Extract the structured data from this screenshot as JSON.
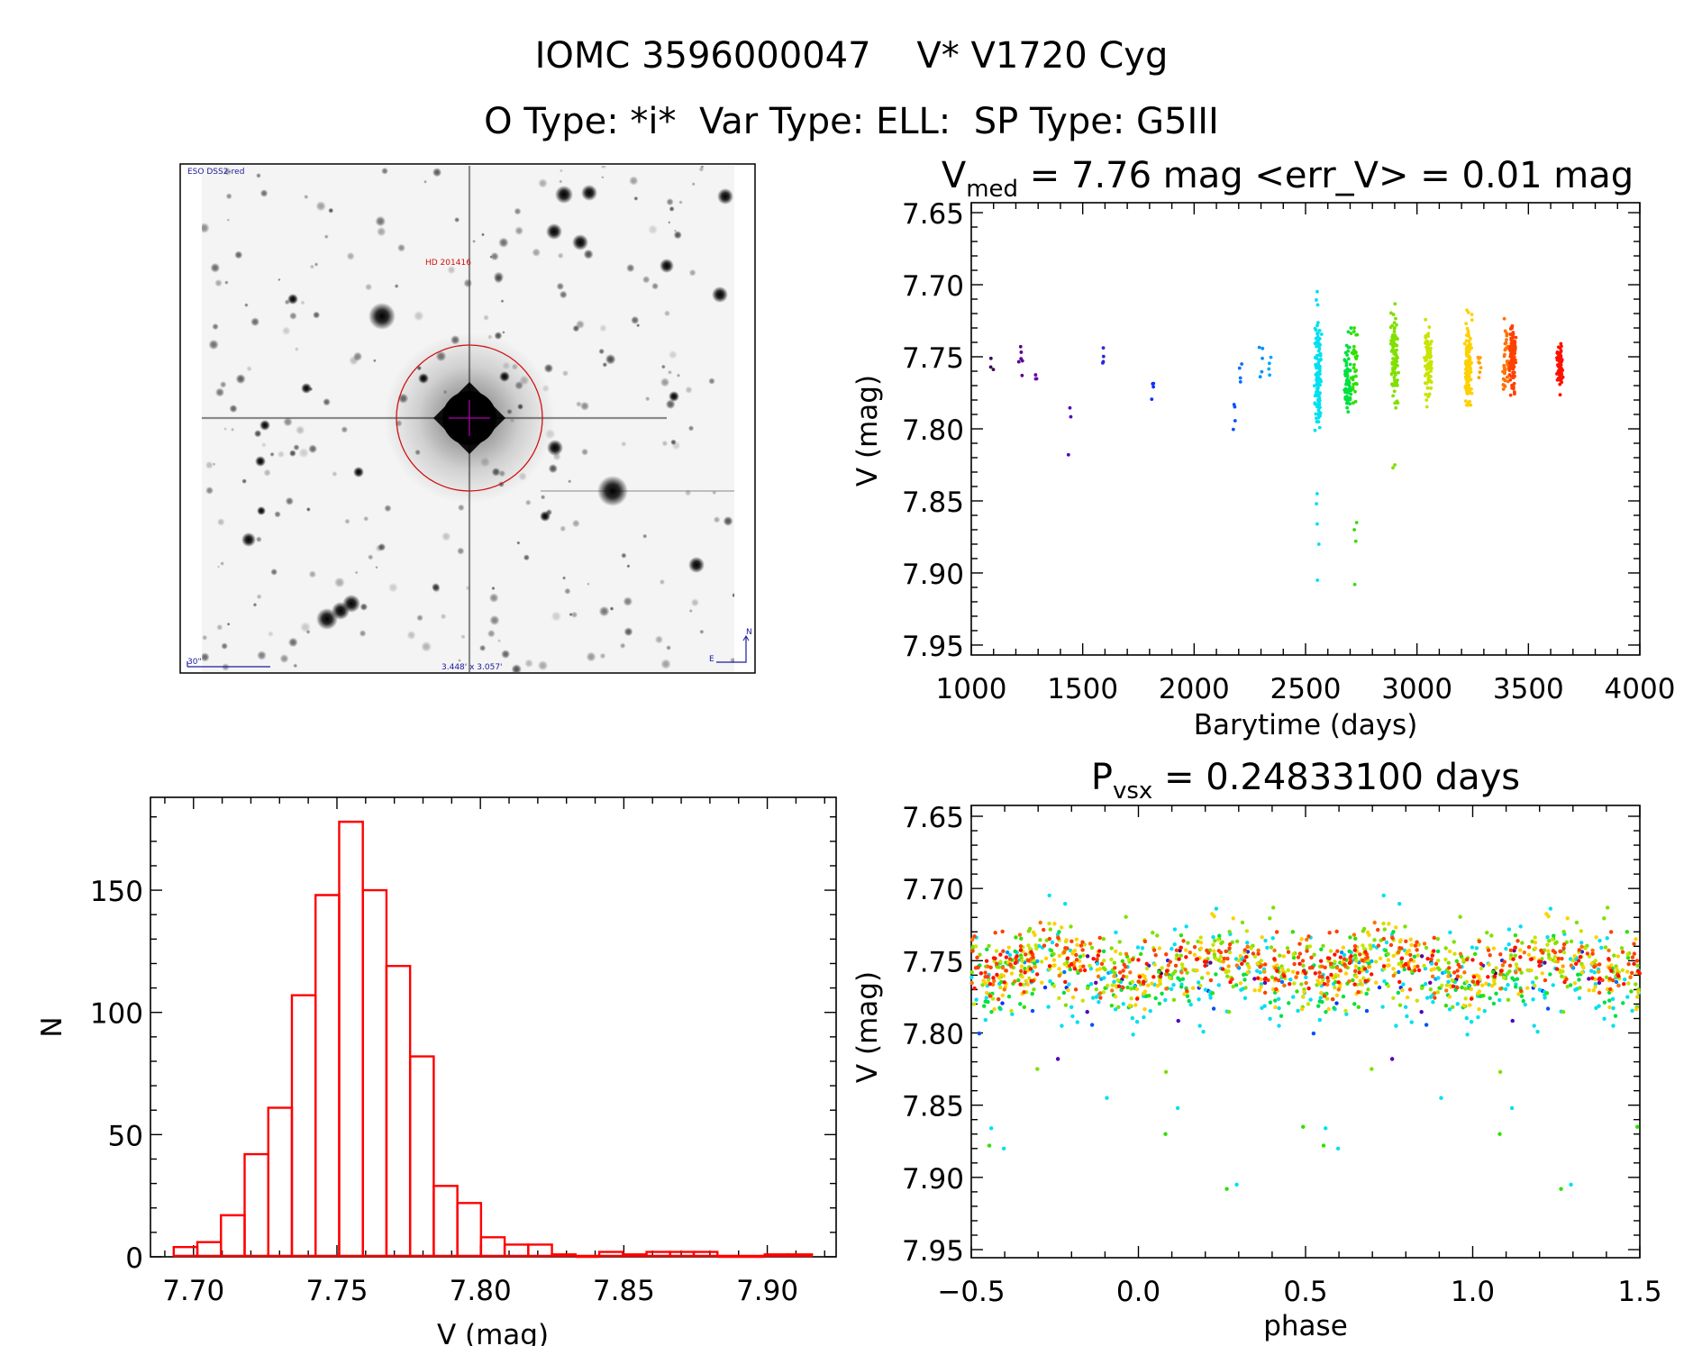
{
  "header": {
    "line1": "IOMC 3596000047    V* V1720 Cyg",
    "line2": "O Type: *i*  Var Type: ELL:  SP Type: G5III"
  },
  "finder_image": {
    "survey_label": "ESO DSS2-red",
    "target_label": "HD 201416",
    "scale_label": "30\"",
    "field_size_label": "3.448' x 3.057'",
    "north_label": "N",
    "east_label": "E",
    "circle_color": "#d01010",
    "overlay_color": "#1a1aa0"
  },
  "chart_data": [
    {
      "id": "lightcurve",
      "type": "scatter",
      "title_main": "V",
      "title_sub": "med",
      "title_rest": " = 7.76 mag <err_V> = 0.01 mag",
      "xlabel": "Barytime (days)",
      "ylabel": "V (mag)",
      "xlim": [
        1000,
        4000
      ],
      "ylim": [
        7.95,
        7.65
      ],
      "y_inverted": true,
      "xticks": [
        "1000",
        "1500",
        "2000",
        "2500",
        "3000",
        "3500",
        "4000"
      ],
      "yticks": [
        "7.65",
        "7.70",
        "7.75",
        "7.80",
        "7.85",
        "7.90",
        "7.95"
      ],
      "median_mag": 7.76,
      "mean_err": 0.01,
      "seasons": [
        {
          "t": 1090,
          "n": 3,
          "lo": 7.745,
          "hi": 7.76,
          "color": "#3c0050",
          "outliers": []
        },
        {
          "t": 1220,
          "n": 6,
          "lo": 7.735,
          "hi": 7.77,
          "color": "#5a0090",
          "outliers": []
        },
        {
          "t": 1290,
          "n": 3,
          "lo": 7.76,
          "hi": 7.77,
          "color": "#6a00a8",
          "outliers": []
        },
        {
          "t": 1440,
          "n": 2,
          "lo": 7.785,
          "hi": 7.795,
          "color": "#5000c0",
          "outliers": [
            7.818
          ]
        },
        {
          "t": 1590,
          "n": 4,
          "lo": 7.744,
          "hi": 7.75,
          "color": "#2828e0",
          "outliers": []
        },
        {
          "t": 1810,
          "n": 5,
          "lo": 7.77,
          "hi": 7.78,
          "color": "#1030ff",
          "outliers": []
        },
        {
          "t": 2180,
          "n": 4,
          "lo": 7.782,
          "hi": 7.802,
          "color": "#0050ff",
          "outliers": []
        },
        {
          "t": 2210,
          "n": 4,
          "lo": 7.75,
          "hi": 7.77,
          "color": "#0070ff",
          "outliers": []
        },
        {
          "t": 2300,
          "n": 5,
          "lo": 7.725,
          "hi": 7.772,
          "color": "#0090ff",
          "outliers": []
        },
        {
          "t": 2340,
          "n": 4,
          "lo": 7.748,
          "hi": 7.765,
          "color": "#00a8ff",
          "outliers": []
        },
        {
          "t": 2555,
          "n": 120,
          "lo": 7.7,
          "hi": 7.822,
          "color": "#00e0f0",
          "outliers": [
            7.845,
            7.852,
            7.866,
            7.88,
            7.905
          ]
        },
        {
          "t": 2690,
          "n": 60,
          "lo": 7.722,
          "hi": 7.803,
          "color": "#00e040",
          "outliers": []
        },
        {
          "t": 2720,
          "n": 30,
          "lo": 7.71,
          "hi": 7.8,
          "color": "#30e000",
          "outliers": [
            7.865,
            7.87,
            7.878,
            7.908
          ]
        },
        {
          "t": 2900,
          "n": 100,
          "lo": 7.695,
          "hi": 7.803,
          "color": "#80e000",
          "outliers": [
            7.825,
            7.827
          ]
        },
        {
          "t": 3050,
          "n": 90,
          "lo": 7.71,
          "hi": 7.8,
          "color": "#c8e400",
          "outliers": []
        },
        {
          "t": 3230,
          "n": 110,
          "lo": 7.71,
          "hi": 7.8,
          "color": "#ffd000",
          "outliers": []
        },
        {
          "t": 3280,
          "n": 8,
          "lo": 7.75,
          "hi": 7.765,
          "color": "#ffa000",
          "outliers": []
        },
        {
          "t": 3400,
          "n": 40,
          "lo": 7.72,
          "hi": 7.785,
          "color": "#ff7000",
          "outliers": []
        },
        {
          "t": 3430,
          "n": 100,
          "lo": 7.71,
          "hi": 7.79,
          "color": "#ff4000",
          "outliers": []
        },
        {
          "t": 3640,
          "n": 60,
          "lo": 7.73,
          "hi": 7.78,
          "color": "#ff1000",
          "outliers": []
        }
      ]
    },
    {
      "id": "phased",
      "type": "scatter",
      "title_main": "P",
      "title_sub": "vsx",
      "title_rest": " = 0.24833100 days",
      "period_days": 0.248331,
      "xlabel": "phase",
      "ylabel": "V (mag)",
      "xlim": [
        -0.5,
        1.5
      ],
      "ylim": [
        7.95,
        7.65
      ],
      "y_inverted": true,
      "xticks": [
        "−0.5",
        "0.0",
        "0.5",
        "1.0",
        "1.5"
      ],
      "yticks": [
        "7.65",
        "7.70",
        "7.75",
        "7.80",
        "7.85",
        "7.90",
        "7.95"
      ]
    },
    {
      "id": "histogram",
      "type": "bar",
      "xlabel": "V (mag)",
      "ylabel": "N",
      "xlim": [
        7.685,
        7.924
      ],
      "ylim": [
        0,
        188
      ],
      "xticks": [
        "7.70",
        "7.75",
        "7.80",
        "7.85",
        "7.90"
      ],
      "yticks": [
        "0",
        "50",
        "100",
        "150"
      ],
      "bin_start": 7.6931,
      "bin_width": 0.00824,
      "counts": [
        4,
        6,
        17,
        42,
        61,
        107,
        148,
        178,
        150,
        119,
        82,
        29,
        22,
        8,
        5,
        5,
        1,
        0,
        2,
        1,
        2,
        2,
        2,
        0,
        0,
        1,
        1
      ],
      "color": "#ff0000"
    }
  ]
}
